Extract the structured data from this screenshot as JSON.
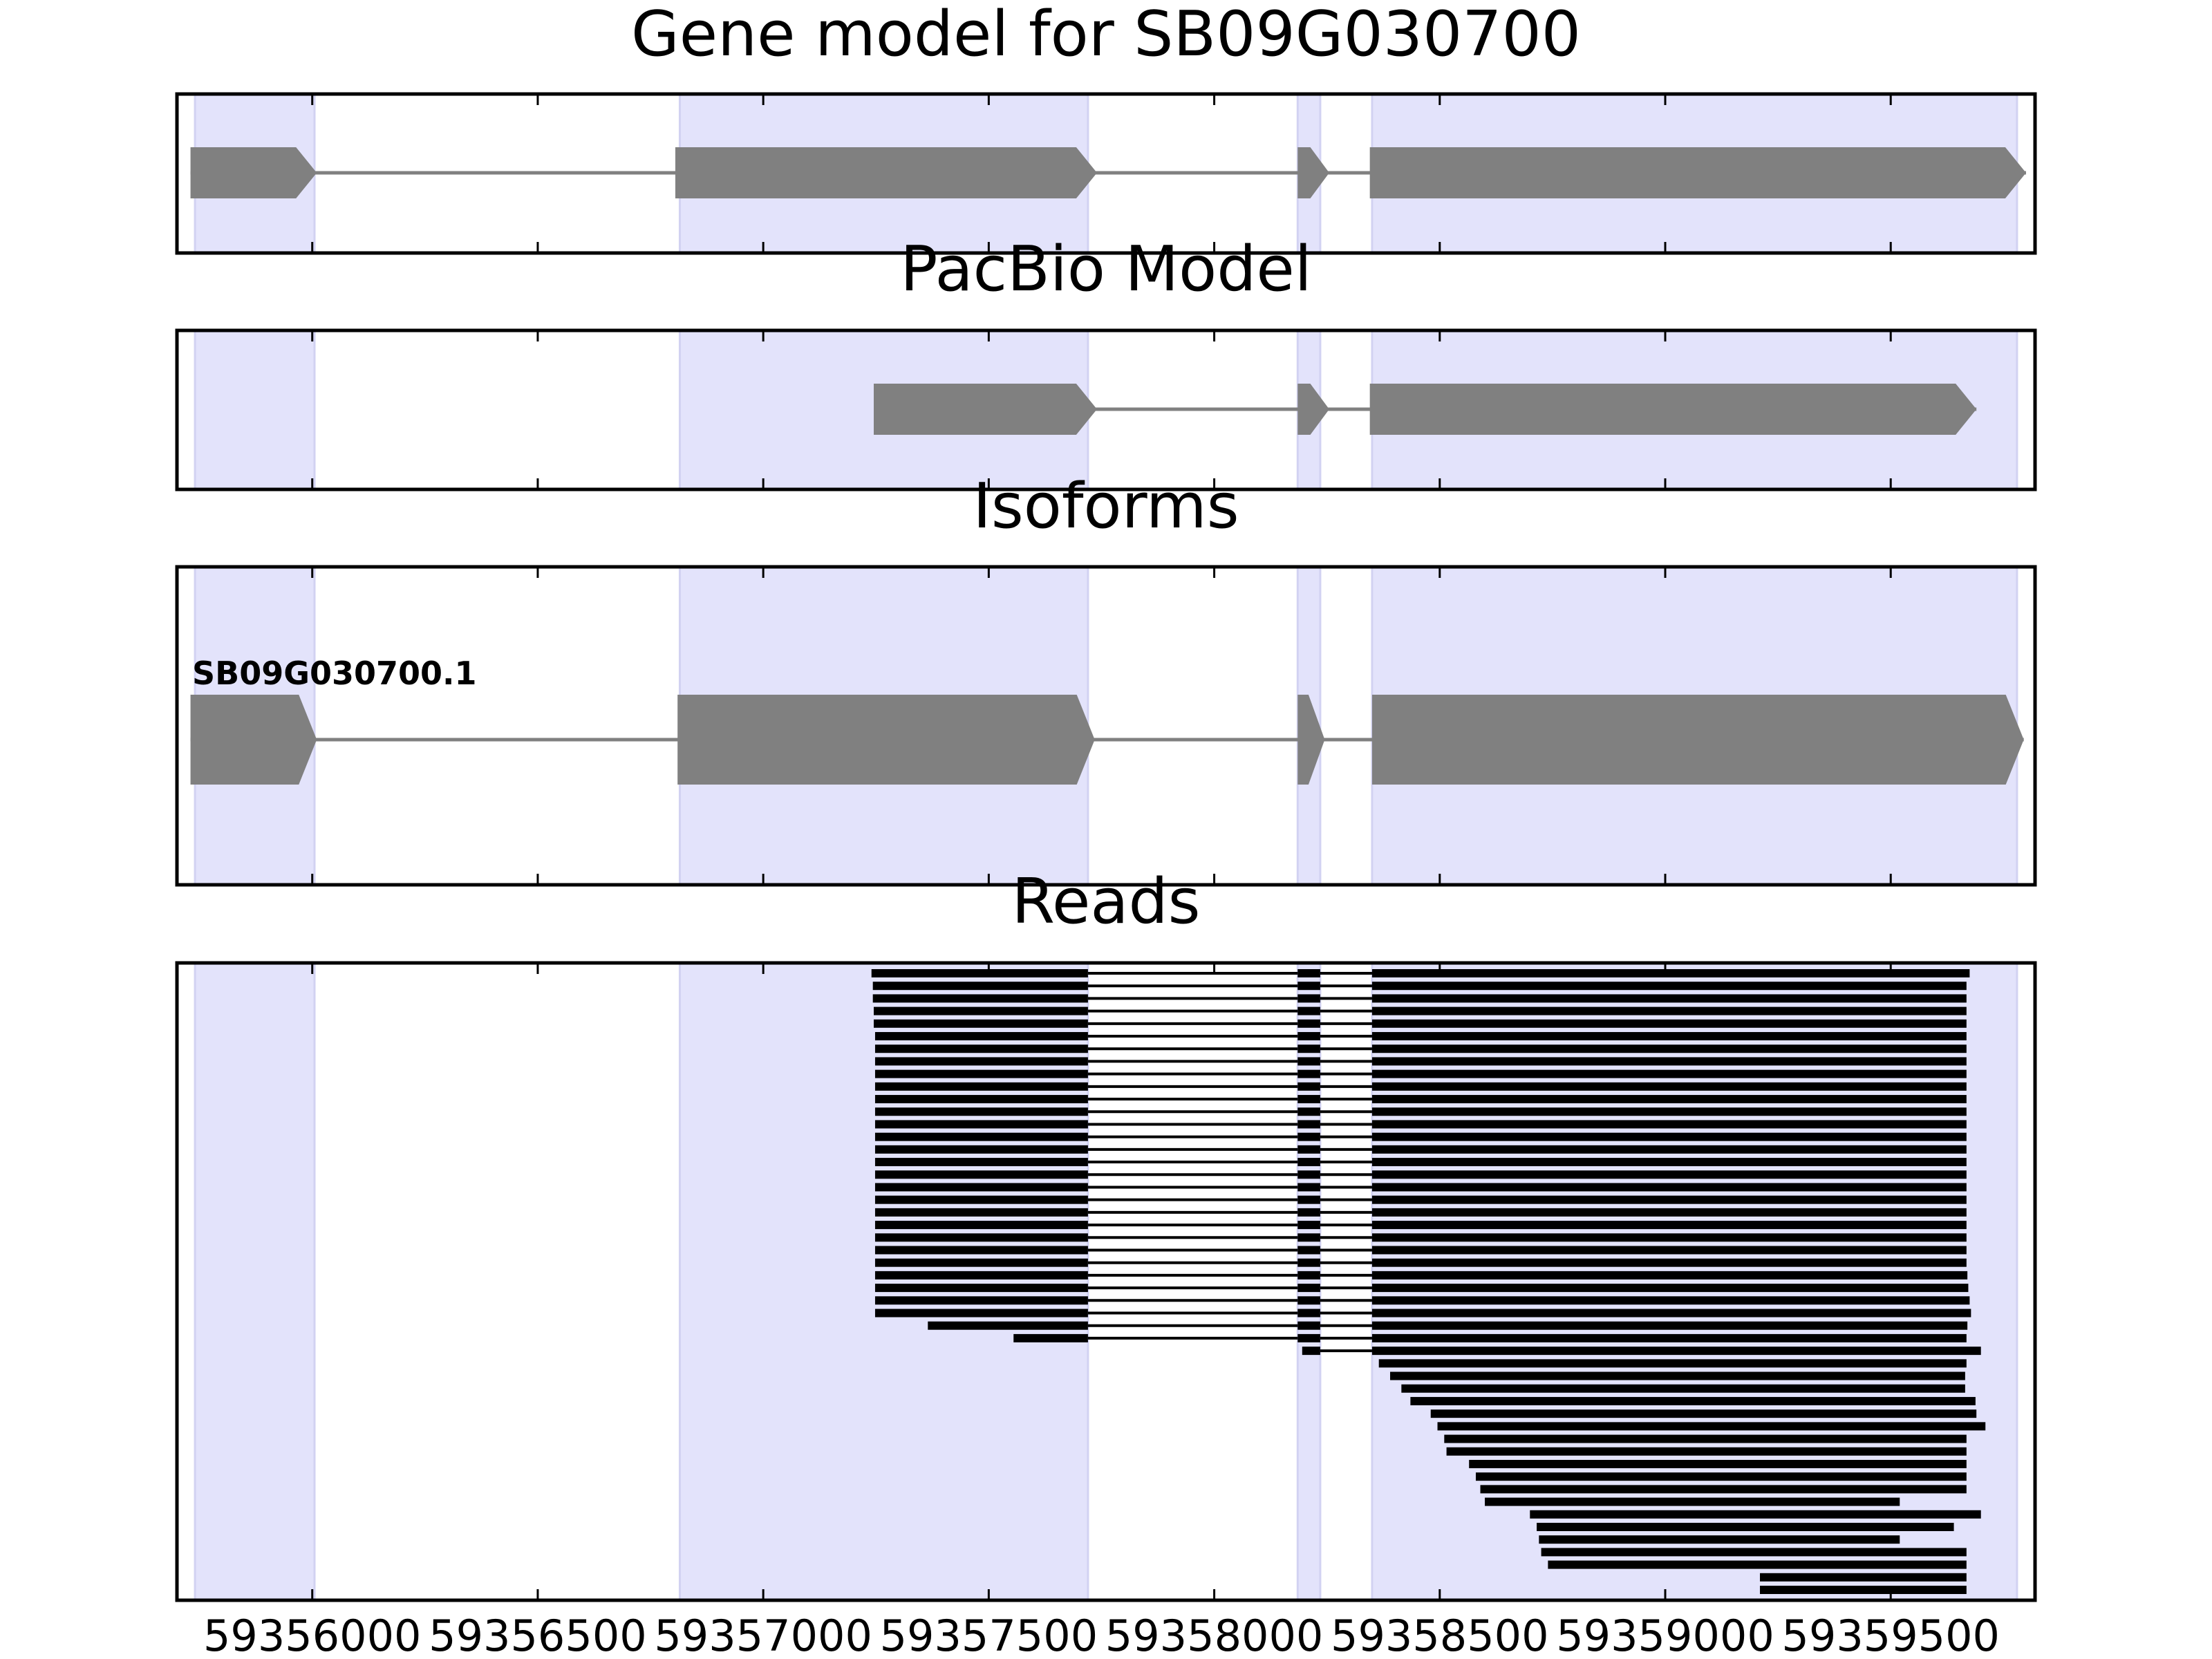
{
  "chart_data": [
    {
      "type": "gene-model",
      "title": "Gene model for SB09G030700",
      "features": [
        {
          "start": 59355730,
          "end": 59356010,
          "arrow": true
        },
        {
          "start": 59356805,
          "end": 59357740,
          "arrow": true
        },
        {
          "start": 59358185,
          "end": 59358255,
          "arrow": true
        },
        {
          "start": 59358345,
          "end": 59359800,
          "arrow": true
        }
      ]
    },
    {
      "type": "gene-model",
      "title": "PacBio Model",
      "features": [
        {
          "start": 59357245,
          "end": 59357740,
          "arrow": true
        },
        {
          "start": 59358185,
          "end": 59358255,
          "arrow": true
        },
        {
          "start": 59358345,
          "end": 59359690,
          "arrow": true
        }
      ]
    },
    {
      "type": "gene-model",
      "title": "Isoforms",
      "isoform_label": "SB09G030700.1",
      "features": [
        {
          "start": 59355730,
          "end": 59356010,
          "arrow": true
        },
        {
          "start": 59356810,
          "end": 59357735,
          "arrow": true
        },
        {
          "start": 59358185,
          "end": 59358245,
          "arrow": true
        },
        {
          "start": 59358350,
          "end": 59359795,
          "arrow": true
        }
      ]
    },
    {
      "type": "reads",
      "title": "Reads",
      "xlim": [
        59355700,
        59359820
      ],
      "xticks": [
        59356000,
        59356500,
        59357000,
        59357500,
        59358000,
        59358500,
        59359000,
        59359500
      ],
      "xtick_labels": [
        "59356000",
        "59356500",
        "59357000",
        "59357500",
        "59358000",
        "59358500",
        "59359000",
        "59359500"
      ],
      "highlight_regions": [
        [
          59355740,
          59356005
        ],
        [
          59356815,
          59357720
        ],
        [
          59358185,
          59358235
        ],
        [
          59358350,
          59359780
        ]
      ],
      "reads": [
        [
          59357240,
          59359675
        ],
        [
          59357243,
          59359668
        ],
        [
          59357243,
          59359668
        ],
        [
          59357245,
          59359668
        ],
        [
          59357245,
          59359668
        ],
        [
          59357248,
          59359668
        ],
        [
          59357248,
          59359668
        ],
        [
          59357248,
          59359668
        ],
        [
          59357248,
          59359668
        ],
        [
          59357248,
          59359668
        ],
        [
          59357248,
          59359668
        ],
        [
          59357248,
          59359668
        ],
        [
          59357248,
          59359668
        ],
        [
          59357248,
          59359668
        ],
        [
          59357248,
          59359668
        ],
        [
          59357248,
          59359668
        ],
        [
          59357248,
          59359668
        ],
        [
          59357248,
          59359668
        ],
        [
          59357248,
          59359668
        ],
        [
          59357248,
          59359668
        ],
        [
          59357248,
          59359668
        ],
        [
          59357248,
          59359668
        ],
        [
          59357248,
          59359668
        ],
        [
          59357248,
          59359668
        ],
        [
          59357248,
          59359670
        ],
        [
          59357248,
          59359672
        ],
        [
          59357248,
          59359675
        ],
        [
          59357248,
          59359678
        ],
        [
          59357365,
          59359670
        ],
        [
          59357555,
          59359668
        ],
        [
          59358195,
          59359700
        ],
        [
          59358365,
          59359668
        ],
        [
          59358390,
          59359665
        ],
        [
          59358415,
          59359665
        ],
        [
          59358435,
          59359688
        ],
        [
          59358480,
          59359690
        ],
        [
          59358495,
          59359710
        ],
        [
          59358510,
          59359668
        ],
        [
          59358515,
          59359668
        ],
        [
          59358565,
          59359668
        ],
        [
          59358580,
          59359668
        ],
        [
          59358590,
          59359668
        ],
        [
          59358600,
          59359520
        ],
        [
          59358700,
          59359700
        ],
        [
          59358715,
          59359640
        ],
        [
          59358720,
          59359520
        ],
        [
          59358725,
          59359668
        ],
        [
          59358740,
          59359668
        ],
        [
          59359210,
          59359668
        ],
        [
          59359210,
          59359668
        ]
      ]
    }
  ]
}
